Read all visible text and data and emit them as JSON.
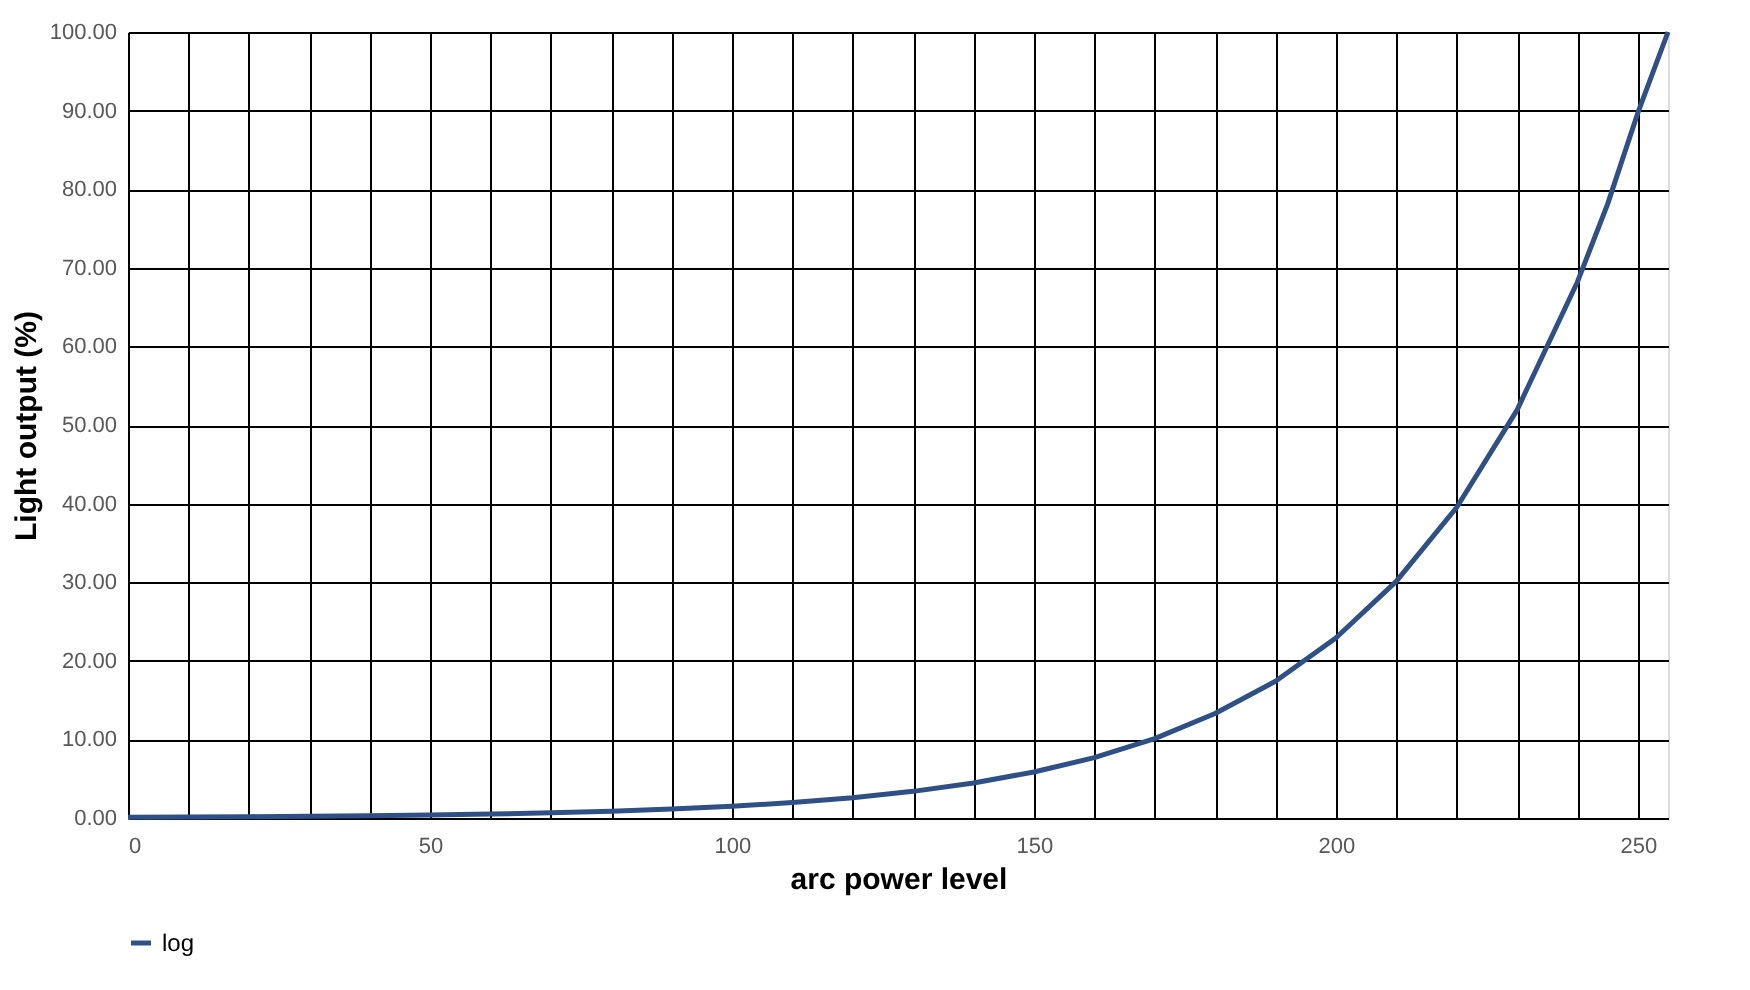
{
  "chart_data": {
    "type": "line",
    "xlabel": "arc power level",
    "ylabel": "Light output (%)",
    "x": [
      0,
      10,
      20,
      30,
      40,
      50,
      60,
      70,
      80,
      90,
      100,
      110,
      120,
      130,
      140,
      150,
      160,
      170,
      180,
      190,
      200,
      210,
      220,
      230,
      240,
      245,
      250,
      255
    ],
    "series": [
      {
        "name": "log",
        "color": "#2e5086",
        "values": [
          0.1,
          0.13,
          0.17,
          0.22,
          0.29,
          0.38,
          0.5,
          0.66,
          0.87,
          1.14,
          1.49,
          1.96,
          2.58,
          3.39,
          4.45,
          5.85,
          7.68,
          10.1,
          13.3,
          17.4,
          22.9,
          30.1,
          39.5,
          51.9,
          68.2,
          78.1,
          89.7,
          100
        ]
      }
    ],
    "xlim": [
      0,
      255
    ],
    "xticks": [
      0,
      {
        "value": 10,
        "label": null
      },
      {
        "value": 20,
        "label": null
      },
      {
        "value": 30,
        "label": null
      },
      {
        "value": 40,
        "label": null
      },
      50,
      {
        "value": 60,
        "label": null
      },
      {
        "value": 70,
        "label": null
      },
      {
        "value": 80,
        "label": null
      },
      {
        "value": 90,
        "label": null
      },
      100,
      {
        "value": 110,
        "label": null
      },
      {
        "value": 120,
        "label": null
      },
      {
        "value": 130,
        "label": null
      },
      {
        "value": 140,
        "label": null
      },
      150,
      {
        "value": 160,
        "label": null
      },
      {
        "value": 170,
        "label": null
      },
      {
        "value": 180,
        "label": null
      },
      {
        "value": 190,
        "label": null
      },
      200,
      {
        "value": 210,
        "label": null
      },
      {
        "value": 220,
        "label": null
      },
      {
        "value": 230,
        "label": null
      },
      {
        "value": 240,
        "label": null
      },
      250
    ],
    "ylim": [
      0,
      100
    ],
    "yticks": [
      {
        "value": 0,
        "label": "0.00"
      },
      {
        "value": 10,
        "label": "10.00"
      },
      {
        "value": 20,
        "label": "20.00"
      },
      {
        "value": 30,
        "label": "30.00"
      },
      {
        "value": 40,
        "label": "40.00"
      },
      {
        "value": 50,
        "label": "50.00"
      },
      {
        "value": 60,
        "label": "60.00"
      },
      {
        "value": 70,
        "label": "70.00"
      },
      {
        "value": 80,
        "label": "80.00"
      },
      {
        "value": 90,
        "label": "90.00"
      },
      {
        "value": 100,
        "label": "100.00"
      }
    ],
    "grid": true,
    "legend": "bottom",
    "marker": "none",
    "line_style": "solid"
  }
}
